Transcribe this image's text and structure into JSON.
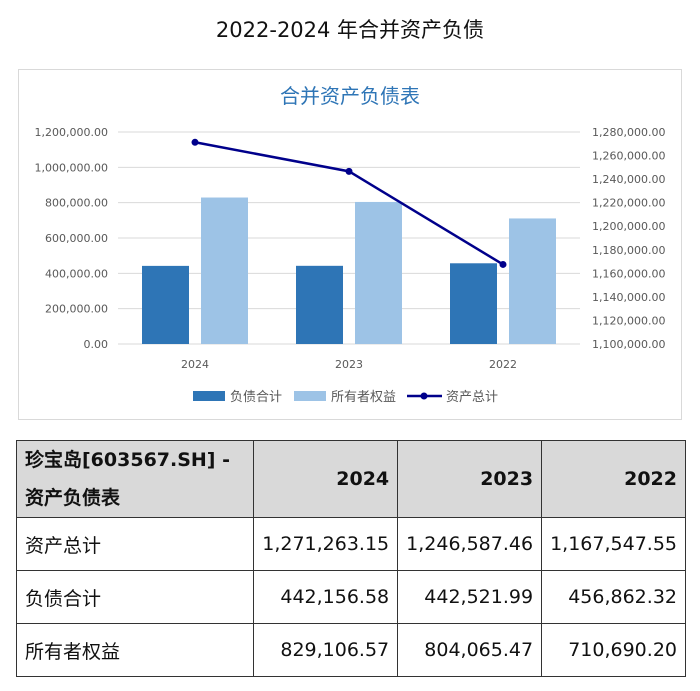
{
  "page_title": "2022-2024 年合并资产负债",
  "chart_data": {
    "type": "bar+line",
    "title": "合并资产负债表",
    "categories": [
      "2024",
      "2023",
      "2022"
    ],
    "series": [
      {
        "name": "负债合计",
        "type": "bar",
        "axis": "left",
        "color": "#2e75b6",
        "values": [
          442156.58,
          442521.99,
          456862.32
        ]
      },
      {
        "name": "所有者权益",
        "type": "bar",
        "axis": "left",
        "color": "#9dc3e6",
        "values": [
          829106.57,
          804065.47,
          710690.2
        ]
      },
      {
        "name": "资产总计",
        "type": "line",
        "axis": "right",
        "color": "#00008b",
        "values": [
          1271263.15,
          1246587.46,
          1167547.55
        ]
      }
    ],
    "left_axis": {
      "ylim": [
        0,
        1200000
      ],
      "ticks": [
        "0.00",
        "200,000.00",
        "400,000.00",
        "600,000.00",
        "800,000.00",
        "1,000,000.00",
        "1,200,000.00"
      ]
    },
    "right_axis": {
      "ylim": [
        1100000,
        1280000
      ],
      "ticks": [
        "1,100,000.00",
        "1,120,000.00",
        "1,140,000.00",
        "1,160,000.00",
        "1,180,000.00",
        "1,200,000.00",
        "1,220,000.00",
        "1,240,000.00",
        "1,260,000.00",
        "1,280,000.00"
      ]
    },
    "grid": true,
    "legend": "bottom"
  },
  "table": {
    "header": [
      "珍宝岛[603567.SH] - 资产负债表",
      "2024",
      "2023",
      "2022"
    ],
    "rows": [
      [
        "资产总计",
        "1,271,263.15",
        "1,246,587.46",
        "1,167,547.55"
      ],
      [
        "负债合计",
        "442,156.58",
        "442,521.99",
        "456,862.32"
      ],
      [
        "所有者权益",
        "829,106.57",
        "804,065.47",
        "710,690.20"
      ]
    ]
  }
}
